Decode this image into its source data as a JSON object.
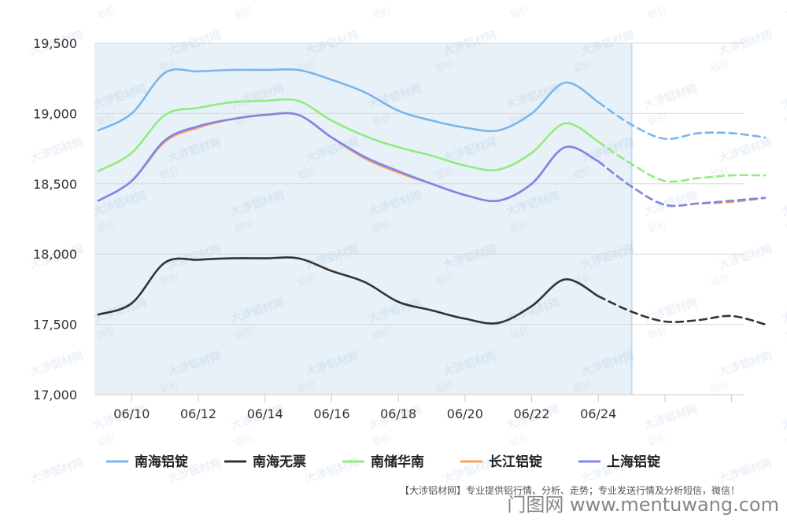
{
  "chart_data": {
    "type": "line",
    "x": [
      "06/09",
      "06/10",
      "06/11",
      "06/12",
      "06/13",
      "06/14",
      "06/15",
      "06/16",
      "06/17",
      "06/18",
      "06/19",
      "06/20",
      "06/21",
      "06/22",
      "06/23",
      "06/24",
      "06/25",
      "06/26",
      "06/27",
      "06/28",
      "06/29"
    ],
    "x_tick_labels": [
      "06/10",
      "06/12",
      "06/14",
      "06/16",
      "06/18",
      "06/20",
      "06/22",
      "06/24"
    ],
    "forecast_start": "06/25",
    "ylim": [
      17000,
      19500
    ],
    "yticks": [
      17000,
      17500,
      18000,
      18500,
      19000,
      19500
    ],
    "ytick_labels": [
      "17,000",
      "17,500",
      "18,000",
      "18,500",
      "19,000",
      "19,500"
    ],
    "grid": true,
    "legend_position": "bottom",
    "series": [
      {
        "name": "南海铝锭",
        "color": "#7cb5ec",
        "values": [
          18880,
          19000,
          19290,
          19300,
          19310,
          19310,
          19310,
          19240,
          19150,
          19020,
          18950,
          18900,
          18880,
          19000,
          19220,
          19080,
          18920,
          18820,
          18860,
          18860,
          18830
        ]
      },
      {
        "name": "南海无票",
        "color": "#333333",
        "values": [
          17570,
          17650,
          17940,
          17960,
          17970,
          17970,
          17970,
          17880,
          17800,
          17660,
          17600,
          17540,
          17510,
          17630,
          17820,
          17700,
          17590,
          17520,
          17530,
          17560,
          17500
        ]
      },
      {
        "name": "南储华南",
        "color": "#90ed7d",
        "values": [
          18590,
          18720,
          18990,
          19040,
          19080,
          19090,
          19090,
          18950,
          18840,
          18760,
          18700,
          18630,
          18600,
          18720,
          18930,
          18800,
          18640,
          18520,
          18540,
          18560,
          18560
        ]
      },
      {
        "name": "长江铝锭",
        "color": "#f7a35c",
        "values": [
          18380,
          18520,
          18800,
          18900,
          18960,
          18990,
          18990,
          18830,
          18680,
          18580,
          18500,
          18420,
          18380,
          18500,
          18760,
          18660,
          18480,
          18350,
          18360,
          18370,
          18400
        ]
      },
      {
        "name": "上海铝锭",
        "color": "#8085e9",
        "values": [
          18380,
          18520,
          18810,
          18910,
          18960,
          18990,
          18990,
          18830,
          18690,
          18590,
          18500,
          18420,
          18380,
          18500,
          18760,
          18660,
          18480,
          18350,
          18360,
          18380,
          18400
        ]
      }
    ]
  },
  "footer": {
    "source_note": "【大涉铝材网】专业提供铝行情、分析、走势；专业发送行情及分析短信，微信！",
    "site_watermark": "门图网 www.mentuwang.com"
  },
  "watermark": {
    "brand_text": "大涉铝材网",
    "price_text": "铝价"
  }
}
